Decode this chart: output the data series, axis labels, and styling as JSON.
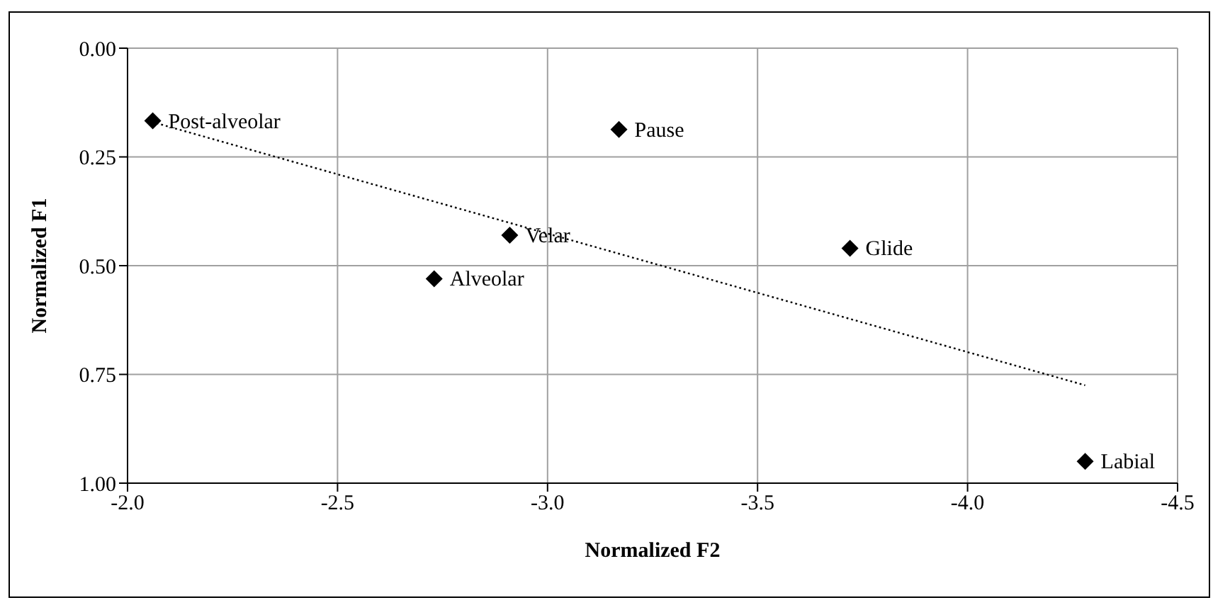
{
  "chart_data": {
    "type": "scatter",
    "xlabel": "Normalized F2",
    "ylabel": "Normalized F1",
    "xlim": [
      -2.0,
      -4.5
    ],
    "ylim": [
      1.0,
      0.0
    ],
    "xticks": [
      {
        "value": -2.0,
        "label": "-2.0"
      },
      {
        "value": -2.5,
        "label": "-2.5"
      },
      {
        "value": -3.0,
        "label": "-3.0"
      },
      {
        "value": -3.5,
        "label": "-3.5"
      },
      {
        "value": -4.0,
        "label": "-4.0"
      },
      {
        "value": -4.5,
        "label": "-4.5"
      }
    ],
    "yticks": [
      {
        "value": 0.0,
        "label": "0.00"
      },
      {
        "value": 0.25,
        "label": "0.25"
      },
      {
        "value": 0.5,
        "label": "0.50"
      },
      {
        "value": 0.75,
        "label": "0.75"
      },
      {
        "value": 1.0,
        "label": "1.00"
      }
    ],
    "grid": true,
    "legend": false,
    "series": [
      {
        "color": "#000000",
        "marker": "diamond",
        "x": [
          -2.06,
          -2.91,
          -2.73,
          -3.17,
          -3.72,
          -4.28
        ],
        "values": [
          0.167,
          0.43,
          0.53,
          0.187,
          0.46,
          0.95
        ]
      },
      {
        "type": "line",
        "color": "#000000",
        "line_style": "dotted",
        "marker": "none",
        "x": [
          -2.06,
          -4.28
        ],
        "values": [
          0.17,
          0.775
        ]
      }
    ],
    "annotations": [
      {
        "text": "Post-alveolar",
        "x": -2.06,
        "y": 0.167
      },
      {
        "text": "Velar",
        "x": -2.91,
        "y": 0.43
      },
      {
        "text": "Alveolar",
        "x": -2.73,
        "y": 0.53
      },
      {
        "text": "Pause",
        "x": -3.17,
        "y": 0.187
      },
      {
        "text": "Glide",
        "x": -3.72,
        "y": 0.46
      },
      {
        "text": "Labial",
        "x": -4.28,
        "y": 0.95
      }
    ]
  }
}
